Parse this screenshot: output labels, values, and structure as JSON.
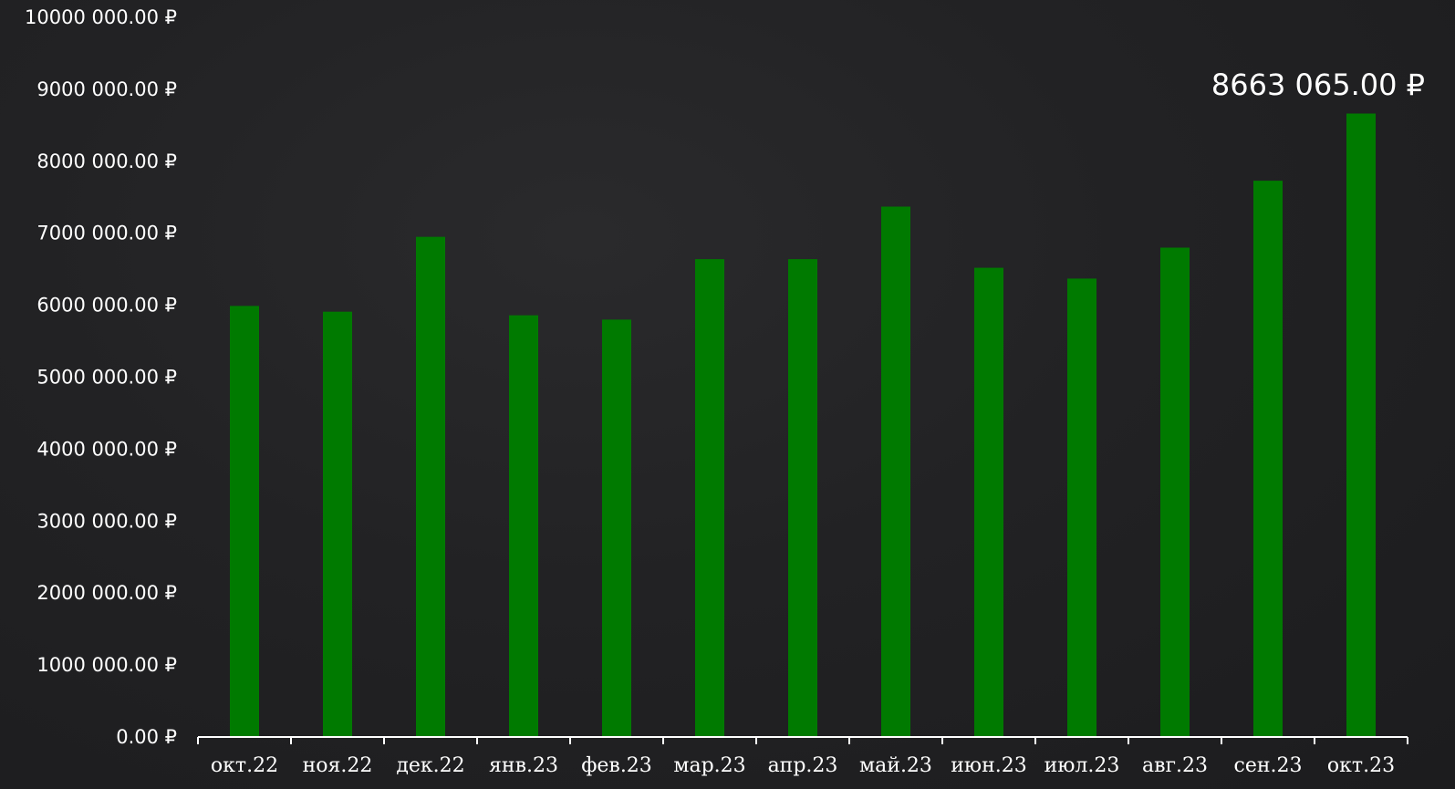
{
  "chart_data": {
    "type": "bar",
    "categories": [
      "окт.22",
      "ноя.22",
      "дек.22",
      "янв.23",
      "фев.23",
      "мар.23",
      "апр.23",
      "май.23",
      "июн.23",
      "июл.23",
      "авг.23",
      "сен.23",
      "окт.23"
    ],
    "values": [
      5990000,
      5910000,
      6950000,
      5860000,
      5800000,
      6640000,
      6640000,
      7370000,
      6520000,
      6370000,
      6800000,
      7730000,
      8663065
    ],
    "ylim": [
      0,
      10000000
    ],
    "yticks": [
      0,
      1000000,
      2000000,
      3000000,
      4000000,
      5000000,
      6000000,
      7000000,
      8000000,
      9000000,
      10000000
    ],
    "ytick_labels": [
      "0.00 ₽",
      "1000 000.00 ₽",
      "2000 000.00 ₽",
      "3000 000.00 ₽",
      "4000 000.00 ₽",
      "5000 000.00 ₽",
      "6000 000.00 ₽",
      "7000 000.00 ₽",
      "8000 000.00 ₽",
      "9000 000.00 ₽",
      "10000 000.00 ₽"
    ],
    "data_labels": [
      {
        "category": "окт.23",
        "text": "8663 065.00 ₽"
      }
    ],
    "title": "",
    "xlabel": "",
    "ylabel": "",
    "grid": false,
    "legend": "none",
    "bar_color": "#007a00",
    "axis_color": "#ffffff",
    "text_color": "#ffffff",
    "background_color": "#222224"
  }
}
